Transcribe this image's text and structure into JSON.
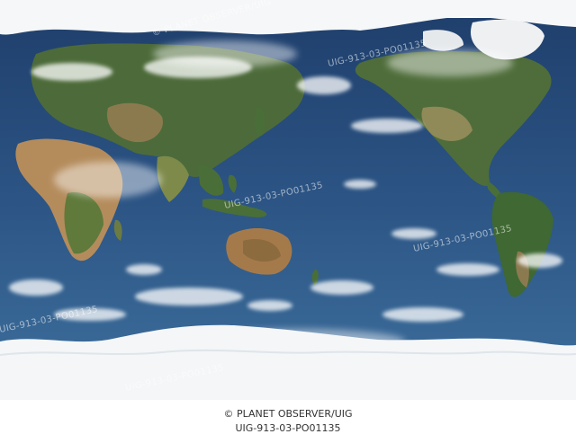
{
  "image": {
    "subject": "satellite-world-map",
    "ocean_color": "#2a4f7f",
    "land_green": "#4a6a38",
    "desert_color": "#b69060",
    "ice_color": "#f5f6f7"
  },
  "watermark": {
    "id_text": "UIG-913-03-PO01135",
    "credit_text": "© PLANET OBSERVER/UIG"
  },
  "caption": {
    "credit": "© PLANET OBSERVER/UIG",
    "image_id": "UIG-913-03-PO01135"
  }
}
